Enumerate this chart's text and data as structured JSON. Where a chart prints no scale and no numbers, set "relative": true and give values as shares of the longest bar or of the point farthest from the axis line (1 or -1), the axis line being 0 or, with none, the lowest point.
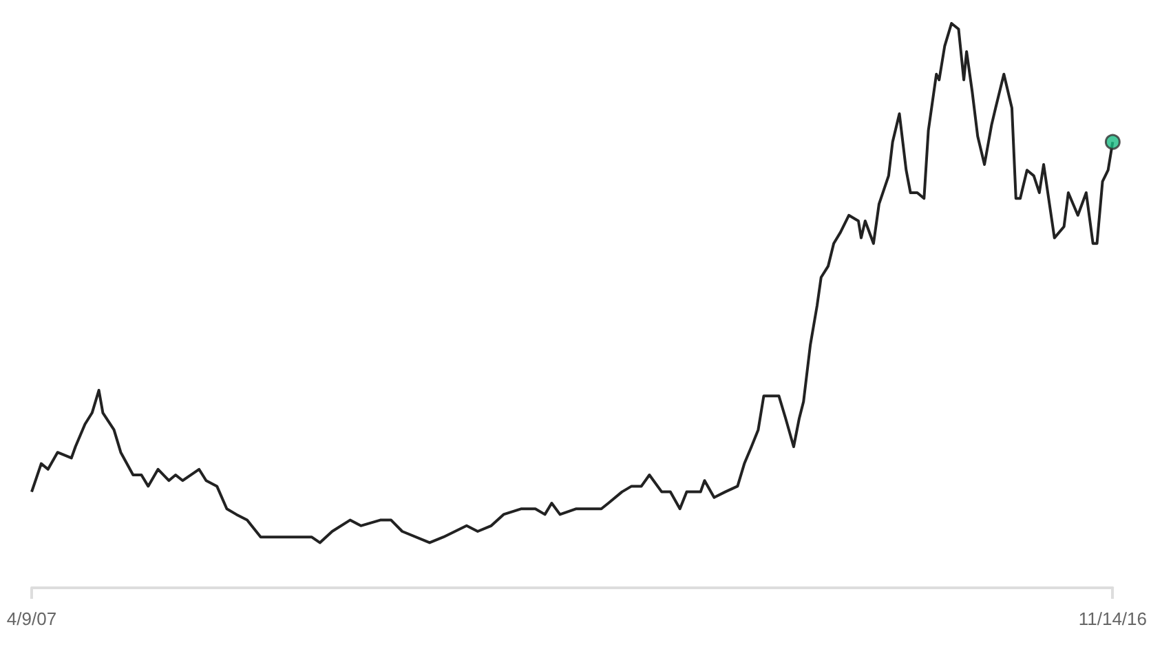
{
  "chart_data": {
    "type": "line",
    "relative": true,
    "grid": false,
    "marker": "none",
    "xlim": [
      "2007-04-09",
      "2016-11-14"
    ],
    "xticks": [
      {
        "value": "2007-04-09",
        "label": "4/9/07"
      },
      {
        "value": "2016-11-14",
        "label": "11/14/16"
      }
    ],
    "series": [
      {
        "color": "#222222",
        "x": [
          "2007-04-09",
          "2007-05-10",
          "2007-06-01",
          "2007-07-02",
          "2007-08-16",
          "2007-08-29",
          "2007-09-29",
          "2007-10-22",
          "2007-11-13",
          "2007-11-26",
          "2008-01-01",
          "2008-01-23",
          "2008-03-03",
          "2008-03-30",
          "2008-04-21",
          "2008-05-23",
          "2008-06-27",
          "2008-07-19",
          "2008-08-11",
          "2008-10-03",
          "2008-10-26",
          "2008-11-30",
          "2009-01-01",
          "2009-02-01",
          "2009-03-08",
          "2009-04-21",
          "2009-06-05",
          "2009-08-02",
          "2009-10-03",
          "2009-10-30",
          "2009-12-09",
          "2010-02-05",
          "2010-03-12",
          "2010-05-14",
          "2010-06-18",
          "2010-07-24",
          "2010-10-21",
          "2010-12-05",
          "2011-02-18",
          "2011-03-26",
          "2011-05-09",
          "2011-06-18",
          "2011-08-15",
          "2011-09-29",
          "2011-10-30",
          "2011-11-21",
          "2011-12-18",
          "2012-02-09",
          "2012-04-30",
          "2012-05-23",
          "2012-07-06",
          "2012-08-06",
          "2012-09-07",
          "2012-10-03",
          "2012-11-12",
          "2012-12-10",
          "2013-01-10",
          "2013-02-01",
          "2013-03-18",
          "2013-03-31",
          "2013-05-01",
          "2013-06-06",
          "2013-07-16",
          "2013-08-07",
          "2013-08-30",
          "2013-09-21",
          "2013-10-09",
          "2013-11-27",
          "2013-12-19",
          "2014-01-14",
          "2014-02-01",
          "2014-02-15",
          "2014-03-09",
          "2014-03-31",
          "2014-04-13",
          "2014-05-06",
          "2014-05-24",
          "2014-06-15",
          "2014-07-12",
          "2014-08-12",
          "2014-08-21",
          "2014-09-03",
          "2014-09-30",
          "2014-10-18",
          "2014-11-18",
          "2014-12-01",
          "2014-12-23",
          "2015-01-14",
          "2015-01-28",
          "2015-02-19",
          "2015-03-13",
          "2015-03-27",
          "2015-04-22",
          "2015-05-01",
          "2015-05-19",
          "2015-06-10",
          "2015-07-03",
          "2015-07-20",
          "2015-07-29",
          "2015-08-16",
          "2015-09-03",
          "2015-09-25",
          "2015-10-18",
          "2015-10-31",
          "2015-11-27",
          "2015-12-23",
          "2016-01-05",
          "2016-01-19",
          "2016-02-10",
          "2016-03-03",
          "2016-03-21",
          "2016-04-04",
          "2016-05-09",
          "2016-06-09",
          "2016-06-23",
          "2016-07-24",
          "2016-08-20",
          "2016-09-11",
          "2016-09-24",
          "2016-10-12",
          "2016-10-30",
          "2016-11-14"
        ],
        "values": [
          0.17,
          0.22,
          0.21,
          0.24,
          0.23,
          0.25,
          0.29,
          0.31,
          0.35,
          0.31,
          0.28,
          0.24,
          0.2,
          0.2,
          0.18,
          0.21,
          0.19,
          0.2,
          0.19,
          0.21,
          0.19,
          0.18,
          0.14,
          0.13,
          0.12,
          0.09,
          0.09,
          0.09,
          0.09,
          0.08,
          0.1,
          0.12,
          0.11,
          0.12,
          0.12,
          0.1,
          0.08,
          0.09,
          0.11,
          0.1,
          0.11,
          0.13,
          0.14,
          0.14,
          0.13,
          0.15,
          0.13,
          0.14,
          0.14,
          0.15,
          0.17,
          0.18,
          0.18,
          0.2,
          0.17,
          0.17,
          0.14,
          0.17,
          0.17,
          0.19,
          0.16,
          0.17,
          0.18,
          0.22,
          0.25,
          0.28,
          0.34,
          0.34,
          0.3,
          0.25,
          0.3,
          0.33,
          0.43,
          0.5,
          0.55,
          0.57,
          0.61,
          0.63,
          0.66,
          0.65,
          0.62,
          0.65,
          0.61,
          0.68,
          0.73,
          0.79,
          0.84,
          0.74,
          0.7,
          0.7,
          0.69,
          0.81,
          0.91,
          0.9,
          0.96,
          1,
          0.99,
          0.9,
          0.95,
          0.88,
          0.8,
          0.75,
          0.82,
          0.85,
          0.91,
          0.85,
          0.69,
          0.69,
          0.74,
          0.73,
          0.7,
          0.75,
          0.62,
          0.64,
          0.7,
          0.66,
          0.7,
          0.61,
          0.61,
          0.72,
          0.74,
          0.79
        ]
      },
      {
        "type": "scatter",
        "marker": "circle",
        "color": "#1abc83",
        "x": [
          "2016-11-14"
        ],
        "values": [
          0.79
        ]
      }
    ]
  }
}
